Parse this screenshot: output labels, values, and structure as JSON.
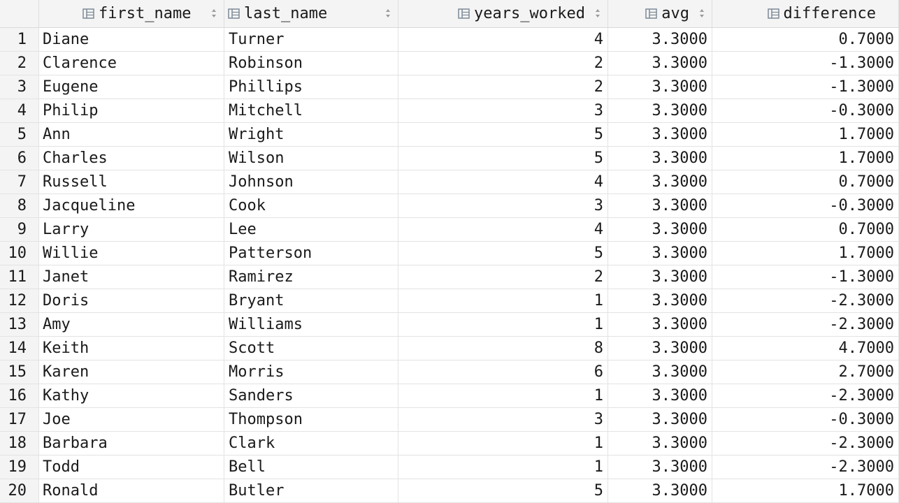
{
  "columns": [
    {
      "label": "first_name",
      "icon": "column-icon"
    },
    {
      "label": "last_name",
      "icon": "column-icon"
    },
    {
      "label": "years_worked",
      "icon": "column-icon"
    },
    {
      "label": "avg",
      "icon": "column-icon"
    },
    {
      "label": "difference",
      "icon": "column-icon"
    }
  ],
  "rows": [
    {
      "n": "1",
      "first": "Diane",
      "last": "Turner",
      "years": "4",
      "avg": "3.3000",
      "diff": "0.7000"
    },
    {
      "n": "2",
      "first": "Clarence",
      "last": "Robinson",
      "years": "2",
      "avg": "3.3000",
      "diff": "-1.3000"
    },
    {
      "n": "3",
      "first": "Eugene",
      "last": "Phillips",
      "years": "2",
      "avg": "3.3000",
      "diff": "-1.3000"
    },
    {
      "n": "4",
      "first": "Philip",
      "last": "Mitchell",
      "years": "3",
      "avg": "3.3000",
      "diff": "-0.3000"
    },
    {
      "n": "5",
      "first": "Ann",
      "last": "Wright",
      "years": "5",
      "avg": "3.3000",
      "diff": "1.7000"
    },
    {
      "n": "6",
      "first": "Charles",
      "last": "Wilson",
      "years": "5",
      "avg": "3.3000",
      "diff": "1.7000"
    },
    {
      "n": "7",
      "first": "Russell",
      "last": "Johnson",
      "years": "4",
      "avg": "3.3000",
      "diff": "0.7000"
    },
    {
      "n": "8",
      "first": "Jacqueline",
      "last": "Cook",
      "years": "3",
      "avg": "3.3000",
      "diff": "-0.3000"
    },
    {
      "n": "9",
      "first": "Larry",
      "last": "Lee",
      "years": "4",
      "avg": "3.3000",
      "diff": "0.7000"
    },
    {
      "n": "10",
      "first": "Willie",
      "last": "Patterson",
      "years": "5",
      "avg": "3.3000",
      "diff": "1.7000"
    },
    {
      "n": "11",
      "first": "Janet",
      "last": "Ramirez",
      "years": "2",
      "avg": "3.3000",
      "diff": "-1.3000"
    },
    {
      "n": "12",
      "first": "Doris",
      "last": "Bryant",
      "years": "1",
      "avg": "3.3000",
      "diff": "-2.3000"
    },
    {
      "n": "13",
      "first": "Amy",
      "last": "Williams",
      "years": "1",
      "avg": "3.3000",
      "diff": "-2.3000"
    },
    {
      "n": "14",
      "first": "Keith",
      "last": "Scott",
      "years": "8",
      "avg": "3.3000",
      "diff": "4.7000"
    },
    {
      "n": "15",
      "first": "Karen",
      "last": "Morris",
      "years": "6",
      "avg": "3.3000",
      "diff": "2.7000"
    },
    {
      "n": "16",
      "first": "Kathy",
      "last": "Sanders",
      "years": "1",
      "avg": "3.3000",
      "diff": "-2.3000"
    },
    {
      "n": "17",
      "first": "Joe",
      "last": "Thompson",
      "years": "3",
      "avg": "3.3000",
      "diff": "-0.3000"
    },
    {
      "n": "18",
      "first": "Barbara",
      "last": "Clark",
      "years": "1",
      "avg": "3.3000",
      "diff": "-2.3000"
    },
    {
      "n": "19",
      "first": "Todd",
      "last": "Bell",
      "years": "1",
      "avg": "3.3000",
      "diff": "-2.3000"
    },
    {
      "n": "20",
      "first": "Ronald",
      "last": "Butler",
      "years": "5",
      "avg": "3.3000",
      "diff": "1.7000"
    }
  ]
}
